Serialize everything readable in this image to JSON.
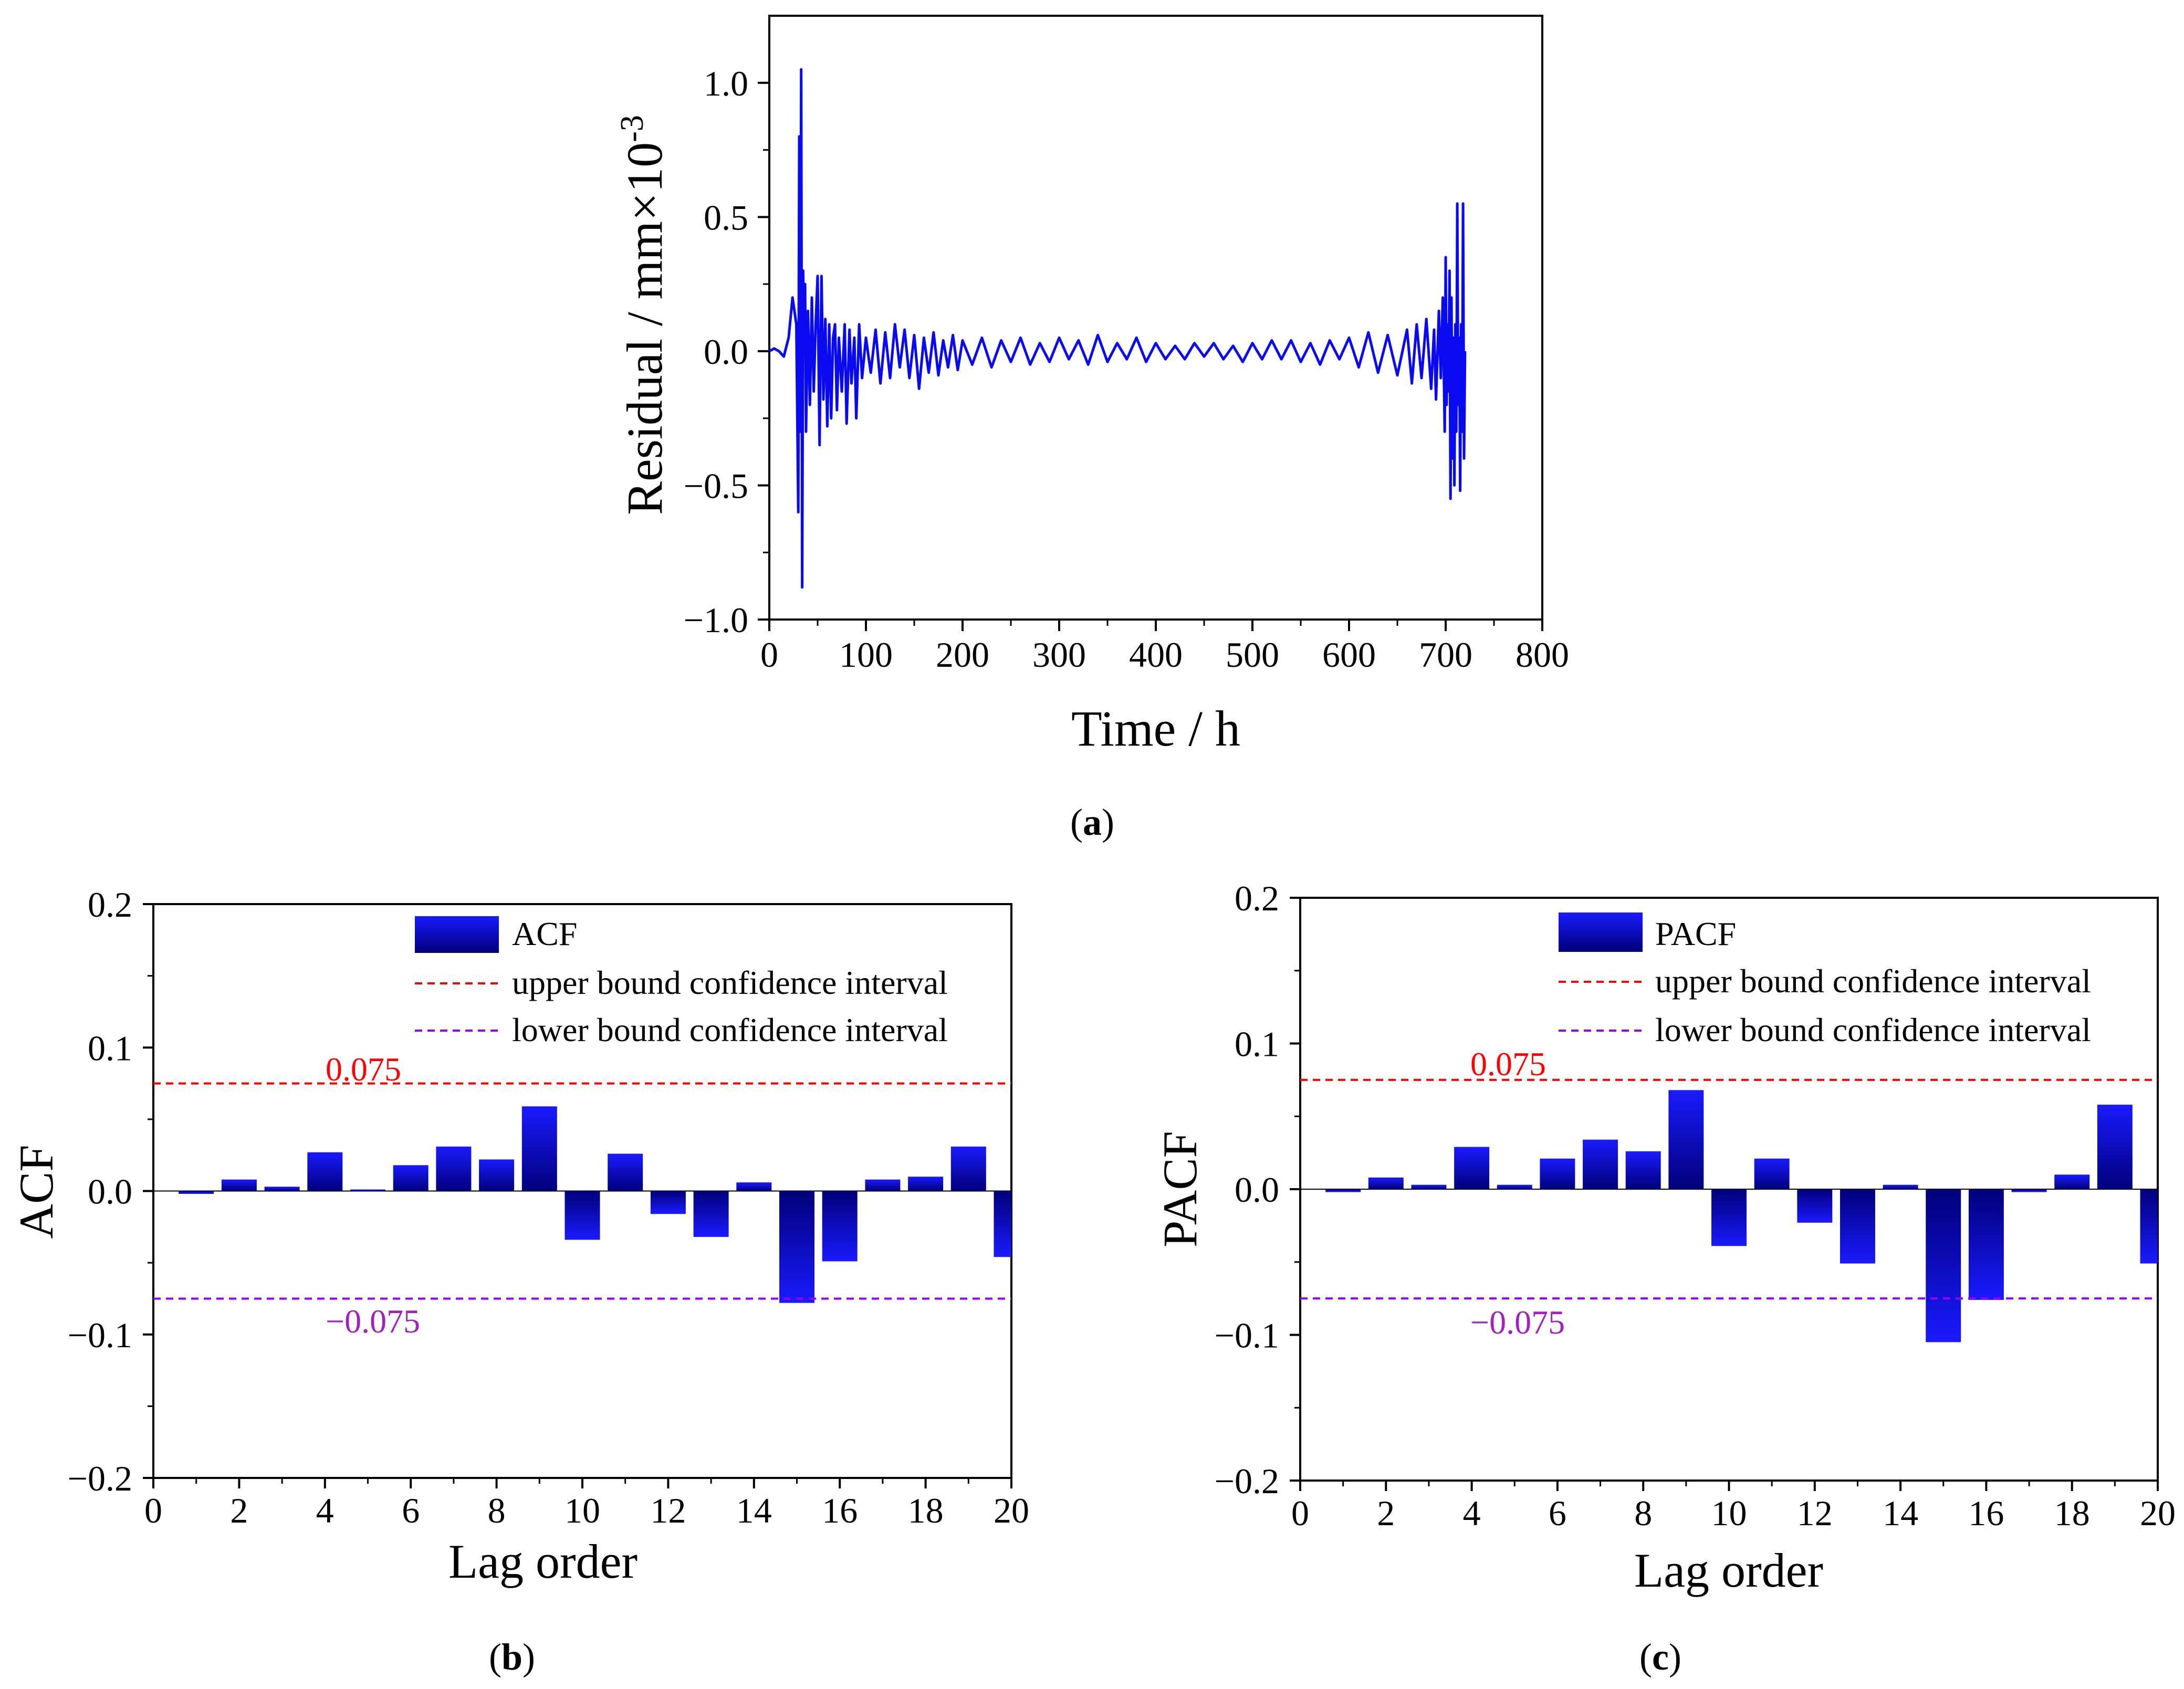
{
  "colors": {
    "series_line": "#0a0af0",
    "bar_top": "#1a1aff",
    "bar_bottom": "#000080",
    "upper_bound": "#ff0000",
    "lower_bound": "#9900ff",
    "upper_label": "#ff0000",
    "lower_label": "#a020c0"
  },
  "chart_data": [
    {
      "id": "a",
      "type": "line",
      "caption": "a",
      "xlabel": "Time / h",
      "ylabel_base": "Residual / mm×10",
      "ylabel_exp": "-3",
      "xlim": [
        0,
        800
      ],
      "ylim": [
        -1.0,
        1.25
      ],
      "xticks": [
        0,
        100,
        200,
        300,
        400,
        500,
        600,
        700,
        800
      ],
      "xtick_labels": [
        "0",
        "100",
        "200",
        "300",
        "400",
        "500",
        "600",
        "700",
        "800"
      ],
      "yticks": [
        -1.0,
        -0.5,
        0.0,
        0.5,
        1.0
      ],
      "ytick_labels": [
        "−1.0",
        "−0.5",
        "0.0",
        "0.5",
        "1.0"
      ],
      "series": [
        {
          "name": "Residual",
          "x": [
            0,
            5,
            10,
            15,
            20,
            24,
            28,
            30,
            31,
            32,
            33,
            34,
            35,
            36,
            37,
            38,
            40,
            42,
            44,
            46,
            48,
            50,
            52,
            54,
            56,
            58,
            60,
            62,
            64,
            66,
            68,
            70,
            72,
            75,
            78,
            80,
            83,
            85,
            88,
            90,
            93,
            96,
            100,
            105,
            110,
            115,
            120,
            125,
            130,
            135,
            140,
            145,
            150,
            155,
            160,
            165,
            170,
            175,
            180,
            185,
            190,
            195,
            200,
            210,
            220,
            230,
            240,
            250,
            260,
            270,
            280,
            290,
            300,
            310,
            320,
            330,
            340,
            350,
            360,
            370,
            380,
            390,
            400,
            410,
            420,
            430,
            440,
            450,
            460,
            470,
            480,
            490,
            500,
            510,
            520,
            530,
            540,
            550,
            560,
            570,
            580,
            590,
            600,
            610,
            620,
            630,
            640,
            650,
            660,
            665,
            670,
            675,
            680,
            685,
            688,
            690,
            693,
            695,
            697,
            699,
            700,
            701,
            702,
            703,
            704,
            705,
            706,
            707,
            708,
            709,
            710,
            711,
            712,
            713,
            714,
            715,
            716,
            717,
            718,
            719,
            720
          ],
          "y": [
            0,
            0.01,
            0,
            -0.02,
            0.05,
            0.2,
            0.1,
            -0.6,
            0.8,
            -0.3,
            1.05,
            -0.88,
            0.3,
            0.05,
            0.25,
            -0.3,
            0.15,
            -0.2,
            0.2,
            -0.15,
            0.1,
            0.28,
            -0.35,
            0.28,
            -0.18,
            0.12,
            -0.28,
            0.1,
            -0.25,
            0.05,
            0.1,
            -0.22,
            0.05,
            -0.15,
            0.1,
            -0.27,
            0.08,
            -0.12,
            0.05,
            -0.25,
            0.1,
            -0.1,
            0.05,
            -0.08,
            0.08,
            -0.12,
            0.07,
            -0.1,
            0.1,
            -0.06,
            0.08,
            -0.1,
            0.06,
            -0.14,
            0.05,
            -0.08,
            0.07,
            -0.09,
            0.04,
            -0.06,
            0.06,
            -0.07,
            0.04,
            -0.05,
            0.05,
            -0.06,
            0.04,
            -0.04,
            0.05,
            -0.05,
            0.03,
            -0.04,
            0.05,
            -0.03,
            0.04,
            -0.05,
            0.06,
            -0.04,
            0.03,
            -0.03,
            0.05,
            -0.04,
            0.03,
            -0.03,
            0.02,
            -0.03,
            0.03,
            -0.02,
            0.03,
            -0.03,
            0.02,
            -0.04,
            0.03,
            -0.03,
            0.04,
            -0.03,
            0.04,
            -0.04,
            0.03,
            -0.05,
            0.04,
            -0.03,
            0.05,
            -0.06,
            0.07,
            -0.08,
            0.06,
            -0.09,
            0.08,
            -0.12,
            0.1,
            -0.1,
            0.12,
            -0.14,
            0.08,
            -0.18,
            0.15,
            -0.1,
            0.2,
            -0.3,
            0.35,
            -0.2,
            0.1,
            -0.15,
            0.3,
            -0.55,
            0.2,
            -0.4,
            0.05,
            -0.5,
            0.1,
            -0.3,
            0.55,
            -0.2,
            0.05,
            -0.52,
            0.1,
            -0.3,
            0.55,
            -0.4,
            0
          ]
        }
      ]
    },
    {
      "id": "b",
      "type": "bar",
      "caption": "b",
      "xlabel": "Lag order",
      "ylabel": "ACF",
      "xlim": [
        0,
        20
      ],
      "ylim": [
        -0.2,
        0.2
      ],
      "xticks": [
        0,
        2,
        4,
        6,
        8,
        10,
        12,
        14,
        16,
        18,
        20
      ],
      "xtick_labels": [
        "0",
        "2",
        "4",
        "6",
        "8",
        "10",
        "12",
        "14",
        "16",
        "18",
        "20"
      ],
      "yticks": [
        -0.2,
        -0.1,
        0.0,
        0.1,
        0.2
      ],
      "ytick_labels": [
        "−0.2",
        "−0.1",
        "0.0",
        "0.1",
        "0.2"
      ],
      "categories": [
        1,
        2,
        3,
        4,
        5,
        6,
        7,
        8,
        9,
        10,
        11,
        12,
        13,
        14,
        15,
        16,
        17,
        18,
        19,
        20
      ],
      "values": [
        -0.002,
        0.008,
        0.003,
        0.027,
        0.001,
        0.018,
        0.031,
        0.022,
        0.059,
        -0.034,
        0.026,
        -0.016,
        -0.032,
        0.006,
        -0.078,
        -0.049,
        0.008,
        0.01,
        0.031,
        -0.046
      ],
      "bounds": [
        0.075,
        -0.075
      ],
      "bound_labels": [
        "0.075",
        "−0.075"
      ],
      "legend": [
        "ACF",
        "upper bound confidence interval",
        "lower bound confidence interval"
      ],
      "legend_position": "top-right"
    },
    {
      "id": "c",
      "type": "bar",
      "caption": "c",
      "xlabel": "Lag order",
      "ylabel": "PACF",
      "xlim": [
        0,
        20
      ],
      "ylim": [
        -0.2,
        0.2
      ],
      "xticks": [
        0,
        2,
        4,
        6,
        8,
        10,
        12,
        14,
        16,
        18,
        20
      ],
      "xtick_labels": [
        "0",
        "2",
        "4",
        "6",
        "8",
        "10",
        "12",
        "14",
        "16",
        "18",
        "20"
      ],
      "yticks": [
        -0.2,
        -0.1,
        0.0,
        0.1,
        0.2
      ],
      "ytick_labels": [
        "−0.2",
        "−0.1",
        "0.0",
        "0.1",
        "0.2"
      ],
      "categories": [
        1,
        2,
        3,
        4,
        5,
        6,
        7,
        8,
        9,
        10,
        11,
        12,
        13,
        14,
        15,
        16,
        17,
        18,
        19,
        20
      ],
      "values": [
        -0.002,
        0.008,
        0.003,
        0.029,
        0.003,
        0.021,
        0.034,
        0.026,
        0.068,
        -0.039,
        0.021,
        -0.023,
        -0.051,
        0.003,
        -0.105,
        -0.076,
        -0.002,
        0.01,
        0.058,
        -0.051
      ],
      "bounds": [
        0.075,
        -0.075
      ],
      "bound_labels": [
        "0.075",
        "−0.075"
      ],
      "legend": [
        "PACF",
        "upper bound confidence interval",
        "lower bound confidence interval"
      ],
      "legend_position": "top-right"
    }
  ]
}
